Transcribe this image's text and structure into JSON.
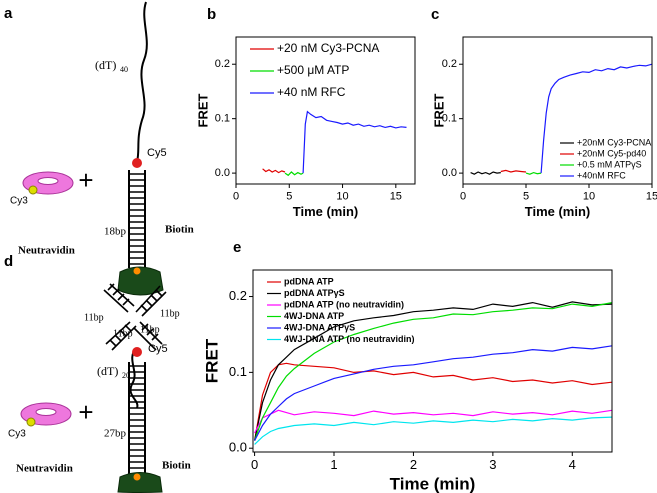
{
  "diagrams": [
    {
      "label": "a",
      "linker": "(dT)",
      "linker_subscript": "40",
      "acceptor": "Cy5",
      "donor": "Cy3",
      "operator": "+",
      "duplex": "18bp",
      "biotin": "Biotin",
      "neutravidin": "Neutravidin"
    },
    {
      "label": "d",
      "arm_labels": [
        "11bp",
        "11bp",
        "11bp",
        "11bp"
      ],
      "linker": "(dT)",
      "linker_subscript": "20",
      "acceptor": "Cy5",
      "donor": "Cy3",
      "operator": "+",
      "duplex": "27bp",
      "biotin": "Biotin",
      "neutravidin": "Neutravidin"
    }
  ],
  "chart_data": [
    {
      "type": "line",
      "label": "b",
      "xlabel": "Time (min)",
      "ylabel": "FRET",
      "xlim": [
        0,
        16.8
      ],
      "ylim": [
        -0.02,
        0.25
      ],
      "xticks": [
        0,
        5,
        10,
        15
      ],
      "yticks": [
        {
          "value": 0,
          "label": "0.0"
        },
        0.1,
        0.2
      ],
      "legend": "upper left",
      "series": [
        {
          "name": "+20 nM Cy3-PCNA",
          "color": "#e00000",
          "x": [
            2.5,
            2.8,
            3.1,
            3.4,
            3.7,
            4.0,
            4.3,
            4.6
          ],
          "values": [
            0.008,
            0.003,
            0.006,
            0.002,
            0.005,
            0.001,
            0.004,
            0.002
          ]
        },
        {
          "name": "+500 μM ATP",
          "color": "#00dd00",
          "x": [
            4.6,
            4.9,
            5.2,
            5.5,
            5.8,
            6.1,
            6.3
          ],
          "values": [
            0.0,
            -0.004,
            0.002,
            -0.003,
            0.001,
            -0.002,
            0.0
          ]
        },
        {
          "name": "+40 nM RFC",
          "color": "#1a1aff",
          "x": [
            6.3,
            6.5,
            6.7,
            7.0,
            7.5,
            8,
            8.5,
            9,
            9.5,
            10,
            10.5,
            11,
            11.5,
            12,
            12.5,
            13,
            13.5,
            14,
            14.5,
            15,
            15.5,
            16
          ],
          "values": [
            0.0,
            0.09,
            0.113,
            0.108,
            0.102,
            0.104,
            0.097,
            0.095,
            0.093,
            0.09,
            0.092,
            0.088,
            0.09,
            0.086,
            0.088,
            0.085,
            0.087,
            0.084,
            0.086,
            0.083,
            0.085,
            0.084
          ]
        }
      ]
    },
    {
      "type": "line",
      "label": "c",
      "xlabel": "Time (min)",
      "ylabel": "FRET",
      "xlim": [
        0,
        15
      ],
      "ylim": [
        -0.02,
        0.25
      ],
      "xticks": [
        0,
        5,
        10,
        15
      ],
      "yticks": [
        {
          "value": 0,
          "label": "0.0"
        },
        0.1,
        0.2
      ],
      "legend": "lower right",
      "series": [
        {
          "name": "+20nM Cy3-PCNA",
          "color": "#000000",
          "x": [
            0.6,
            0.9,
            1.2,
            1.5,
            1.8,
            2.1,
            2.4,
            2.7,
            3.0
          ],
          "values": [
            0.001,
            -0.002,
            0.002,
            -0.001,
            0.001,
            -0.002,
            0.002,
            0.0,
            0.001
          ]
        },
        {
          "name": "+20nM Cy5-pd40",
          "color": "#e00000",
          "x": [
            3.0,
            3.4,
            3.8,
            4.2,
            4.6,
            5.0
          ],
          "values": [
            0.003,
            0.005,
            0.002,
            0.004,
            0.003,
            0.002
          ]
        },
        {
          "name": "+0.5 mM ATPγS",
          "color": "#00dd00",
          "x": [
            5.0,
            5.3,
            5.6,
            5.9,
            6.2
          ],
          "values": [
            0.0,
            -0.002,
            0.001,
            -0.001,
            0.0
          ]
        },
        {
          "name": "+40nM RFC",
          "color": "#1a1aff",
          "x": [
            6.2,
            6.4,
            6.6,
            6.8,
            7.0,
            7.3,
            7.6,
            8,
            8.5,
            9,
            9.5,
            10,
            10.5,
            11,
            11.5,
            12,
            12.5,
            13,
            13.5,
            14,
            14.5,
            15
          ],
          "values": [
            0.0,
            0.06,
            0.11,
            0.14,
            0.155,
            0.165,
            0.172,
            0.176,
            0.18,
            0.183,
            0.186,
            0.185,
            0.19,
            0.188,
            0.192,
            0.19,
            0.195,
            0.193,
            0.196,
            0.198,
            0.197,
            0.2
          ]
        }
      ]
    },
    {
      "type": "line",
      "label": "e",
      "xlabel": "Time (min)",
      "ylabel": "FRET",
      "xlim": [
        -0.02,
        4.5
      ],
      "ylim": [
        -0.005,
        0.235
      ],
      "xticks": [
        0,
        1,
        2,
        3,
        4
      ],
      "yticks": [
        {
          "value": 0,
          "label": "0.0"
        },
        0.1,
        0.2
      ],
      "legend": "upper left",
      "x": [
        0,
        0.1,
        0.2,
        0.3,
        0.4,
        0.5,
        0.75,
        1,
        1.25,
        1.5,
        1.75,
        2,
        2.25,
        2.5,
        2.75,
        3,
        3.25,
        3.5,
        3.75,
        4,
        4.25,
        4.5
      ],
      "series": [
        {
          "name": "pdDNA ATP",
          "color": "#e00000",
          "values": [
            0.01,
            0.07,
            0.1,
            0.11,
            0.112,
            0.11,
            0.108,
            0.106,
            0.1,
            0.102,
            0.097,
            0.1,
            0.094,
            0.096,
            0.09,
            0.093,
            0.088,
            0.09,
            0.086,
            0.089,
            0.084,
            0.087
          ]
        },
        {
          "name": "pdDNA ATPγS",
          "color": "#000000",
          "values": [
            0.01,
            0.06,
            0.09,
            0.11,
            0.12,
            0.13,
            0.145,
            0.16,
            0.168,
            0.172,
            0.175,
            0.18,
            0.182,
            0.185,
            0.183,
            0.19,
            0.187,
            0.192,
            0.186,
            0.193,
            0.189,
            0.19
          ]
        },
        {
          "name": "pdDNA ATP (no neutravidin)",
          "color": "#ff00ff",
          "values": [
            0.02,
            0.04,
            0.045,
            0.05,
            0.047,
            0.044,
            0.048,
            0.046,
            0.043,
            0.049,
            0.045,
            0.047,
            0.044,
            0.046,
            0.043,
            0.048,
            0.045,
            0.047,
            0.044,
            0.049,
            0.046,
            0.05
          ]
        },
        {
          "name": "4WJ-DNA ATP",
          "color": "#00dd00",
          "values": [
            0.01,
            0.04,
            0.06,
            0.08,
            0.095,
            0.105,
            0.125,
            0.14,
            0.15,
            0.158,
            0.165,
            0.17,
            0.172,
            0.177,
            0.176,
            0.18,
            0.182,
            0.185,
            0.184,
            0.19,
            0.187,
            0.192
          ]
        },
        {
          "name": "4WJ-DNA ATPγS",
          "color": "#1a1aff",
          "values": [
            0.01,
            0.03,
            0.045,
            0.055,
            0.065,
            0.072,
            0.082,
            0.092,
            0.098,
            0.104,
            0.108,
            0.11,
            0.114,
            0.118,
            0.12,
            0.124,
            0.126,
            0.13,
            0.128,
            0.133,
            0.131,
            0.135
          ]
        },
        {
          "name": "4WJ-DNA ATP (no neutravidin)",
          "color": "#00e5ee",
          "values": [
            0.005,
            0.015,
            0.022,
            0.026,
            0.028,
            0.03,
            0.032,
            0.03,
            0.034,
            0.031,
            0.035,
            0.033,
            0.036,
            0.034,
            0.037,
            0.035,
            0.038,
            0.036,
            0.039,
            0.037,
            0.04,
            0.041
          ]
        }
      ]
    }
  ]
}
